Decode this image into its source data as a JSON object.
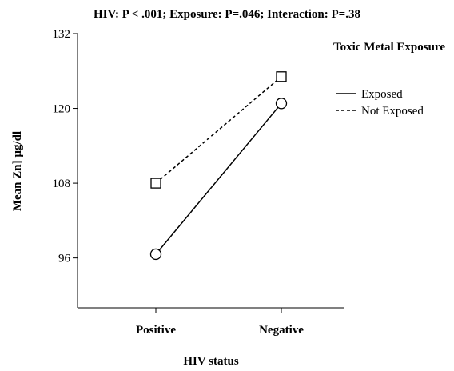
{
  "chart_data": {
    "type": "line",
    "title": "HIV: P < .001; Exposure: P=.046; Interaction: P=.38",
    "x_label": "HIV status",
    "y_label": "Mean Zn] µg/dl",
    "legend_title": "Toxic Metal Exposure",
    "categories": [
      "Positive",
      "Negative"
    ],
    "series": [
      {
        "name": "Exposed",
        "color": "#000000",
        "linestyle": "solid",
        "marker": "circle",
        "values": [
          96.6,
          120.8
        ]
      },
      {
        "name": "Not Exposed",
        "color": "#000000",
        "linestyle": "dashed",
        "marker": "square",
        "values": [
          108,
          125.1
        ]
      }
    ],
    "ylim": [
      88,
      132
    ],
    "yticks": [
      96,
      108,
      120,
      132
    ],
    "grid": false
  }
}
